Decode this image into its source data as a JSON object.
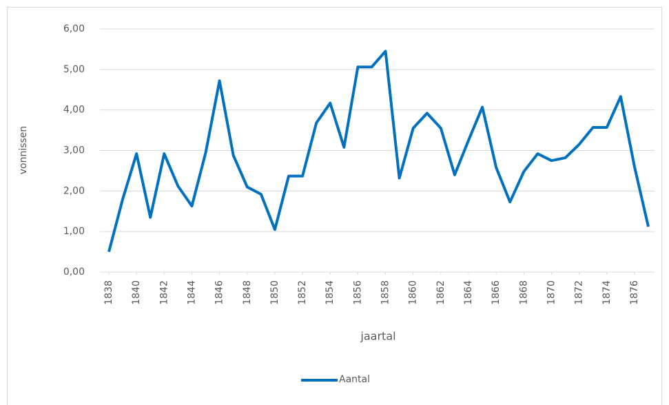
{
  "chart_data": {
    "type": "line",
    "x": [
      1838,
      1839,
      1840,
      1841,
      1842,
      1843,
      1844,
      1845,
      1846,
      1847,
      1848,
      1849,
      1850,
      1851,
      1852,
      1853,
      1854,
      1855,
      1856,
      1857,
      1858,
      1859,
      1860,
      1861,
      1862,
      1863,
      1864,
      1865,
      1866,
      1867,
      1868,
      1869,
      1870,
      1871,
      1872,
      1873,
      1874,
      1875,
      1876,
      1877
    ],
    "series": [
      {
        "name": "Aantal",
        "color": "#0070c0",
        "values": [
          0.5,
          1.8,
          2.92,
          1.35,
          2.92,
          2.12,
          1.63,
          2.95,
          4.72,
          2.88,
          2.1,
          1.92,
          1.05,
          2.37,
          2.37,
          3.68,
          4.17,
          3.08,
          5.06,
          5.06,
          5.45,
          2.32,
          3.55,
          3.92,
          3.55,
          2.4,
          3.25,
          4.07,
          2.58,
          1.73,
          2.48,
          2.92,
          2.75,
          2.82,
          3.15,
          3.57,
          3.57,
          4.33,
          2.6,
          1.12
        ]
      }
    ],
    "xlim": [
      1838,
      1877
    ],
    "xticks": [
      1838,
      1840,
      1842,
      1844,
      1846,
      1848,
      1850,
      1852,
      1854,
      1856,
      1858,
      1860,
      1862,
      1864,
      1866,
      1868,
      1870,
      1872,
      1874,
      1876
    ],
    "ylim": [
      0,
      6
    ],
    "yticks": [
      {
        "value": 0,
        "label": "0,00"
      },
      {
        "value": 1,
        "label": "1,00"
      },
      {
        "value": 2,
        "label": "2,00"
      },
      {
        "value": 3,
        "label": "3,00"
      },
      {
        "value": 4,
        "label": "4,00"
      },
      {
        "value": 5,
        "label": "5,00"
      },
      {
        "value": 6,
        "label": "6,00"
      }
    ],
    "xlabel": "jaartal",
    "ylabel": "vonnissen",
    "grid": true,
    "legend": "bottom"
  }
}
